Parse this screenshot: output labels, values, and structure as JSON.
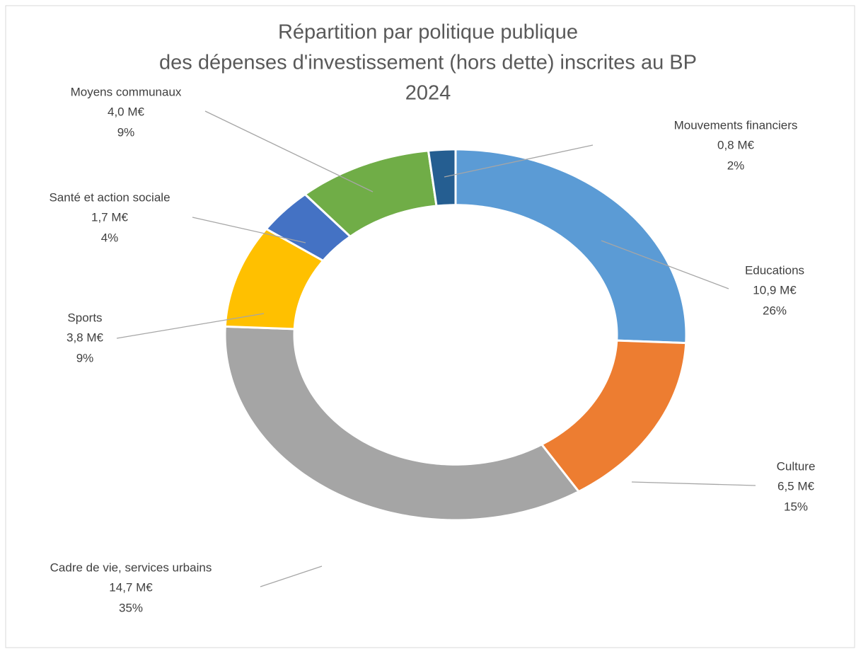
{
  "chart_data": {
    "type": "donut",
    "title": [
      "Répartition par politique publique",
      "des dépenses d'investissement (hors dette) inscrites au BP",
      "2024"
    ],
    "categories": [
      "Educations",
      "Culture",
      "Cadre de vie, services urbains",
      "Sports",
      "Santé et action sociale",
      "Moyens communaux",
      "Mouvements financiers"
    ],
    "values": [
      10.9,
      6.5,
      14.7,
      3.8,
      1.7,
      4.0,
      0.8
    ],
    "value_labels": [
      "10,9 M€",
      "6,5 M€",
      "14,7 M€",
      "3,8 M€",
      "1,7 M€",
      "4,0 M€",
      "0,8 M€"
    ],
    "percentages": [
      26,
      15,
      35,
      9,
      4,
      9,
      2
    ],
    "percentage_labels": [
      "26%",
      "15%",
      "35%",
      "9%",
      "4%",
      "9%",
      "2%"
    ],
    "colors": [
      "#5b9bd5",
      "#ed7d31",
      "#a5a5a5",
      "#ffc000",
      "#4472c4",
      "#70ad47",
      "#255e91"
    ]
  }
}
